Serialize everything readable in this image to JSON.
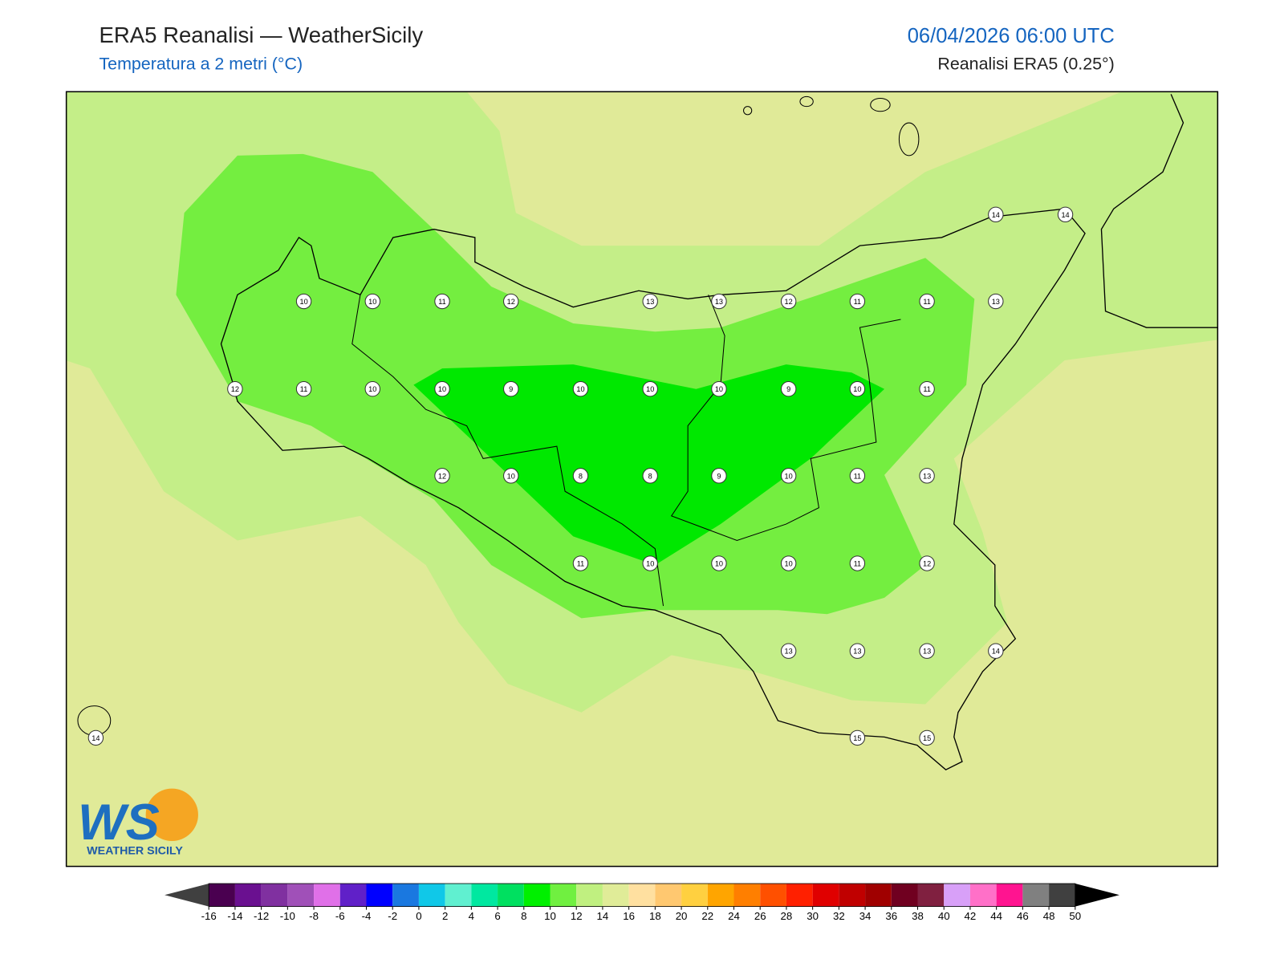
{
  "header": {
    "title": "ERA5 Reanalisi — WeatherSicily",
    "subtitle": "Temperatura a 2 metri (°C)",
    "datetime": "06/04/2026 06:00 UTC",
    "source": "Reanalisi ERA5 (0.25°)"
  },
  "map": {
    "points": [
      14,
      14,
      10,
      10,
      11,
      12,
      13,
      13,
      12,
      11,
      11,
      13,
      12,
      11,
      10,
      10,
      9,
      10,
      10,
      10,
      9,
      10,
      11,
      12,
      10,
      8,
      8,
      9,
      10,
      11,
      13,
      11,
      10,
      10,
      10,
      11,
      12,
      13,
      13,
      13,
      14,
      14,
      15,
      15
    ]
  },
  "logo": {
    "mark": "WS",
    "text": "WEATHER SICILY"
  },
  "colorbar": {
    "ticks": [
      -16,
      -14,
      -12,
      -10,
      -8,
      -6,
      -4,
      -2,
      0,
      2,
      4,
      6,
      8,
      10,
      12,
      14,
      16,
      18,
      20,
      22,
      24,
      26,
      28,
      30,
      32,
      34,
      36,
      38,
      40,
      42,
      44,
      46,
      48,
      50
    ],
    "colors": [
      "#4a0050",
      "#6a1090",
      "#8030a0",
      "#a050b8",
      "#e070e8",
      "#6020c8",
      "#0000ff",
      "#1a78e0",
      "#10c8e8",
      "#60f0d0",
      "#00e8a0",
      "#00e060",
      "#00f000",
      "#70f040",
      "#c0f080",
      "#e0ec98",
      "#ffe0a0",
      "#ffc870",
      "#ffd040",
      "#ffa500",
      "#ff7f00",
      "#ff5000",
      "#ff2000",
      "#e00000",
      "#c00000",
      "#a00000",
      "#700020",
      "#802040",
      "#d8a0f8",
      "#ff70c8",
      "#ff1490",
      "#808080",
      "#404040"
    ],
    "under_color": "#404040",
    "over_color": "#000000"
  }
}
